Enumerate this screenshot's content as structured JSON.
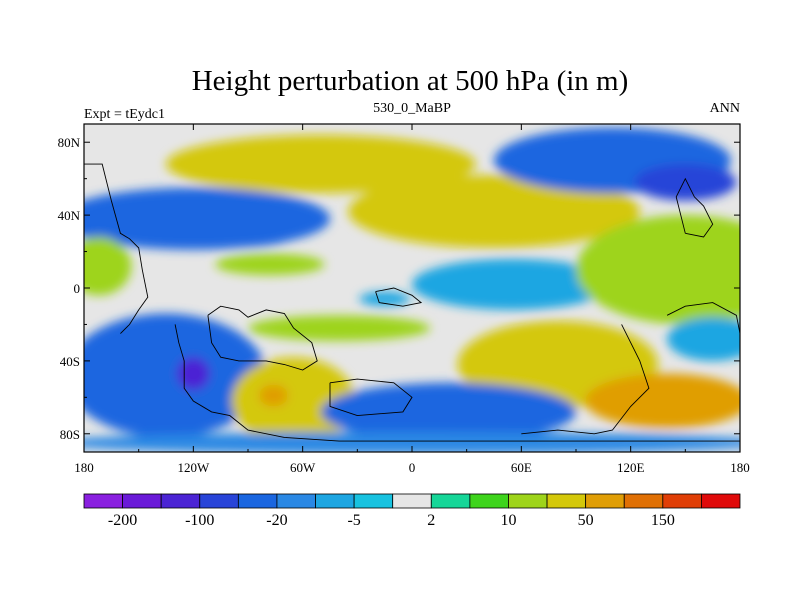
{
  "chart_data": {
    "type": "heatmap",
    "title": "Height perturbation at 500 hPa (in m)",
    "subtitle_left": "Expt = tEydc1",
    "subtitle_center": "530_0_MaBP",
    "subtitle_right": "ANN",
    "x_axis": {
      "range": [
        -180,
        180
      ],
      "ticks": [
        {
          "value": -180,
          "label": "180"
        },
        {
          "value": -120,
          "label": "120W"
        },
        {
          "value": -60,
          "label": "60W"
        },
        {
          "value": 0,
          "label": "0"
        },
        {
          "value": 60,
          "label": "60E"
        },
        {
          "value": 120,
          "label": "120E"
        },
        {
          "value": 180,
          "label": "180"
        }
      ]
    },
    "y_axis": {
      "range": [
        -90,
        90
      ],
      "ticks": [
        {
          "value": 80,
          "label": "80N"
        },
        {
          "value": 40,
          "label": "40N"
        },
        {
          "value": 0,
          "label": "0"
        },
        {
          "value": -40,
          "label": "40S"
        },
        {
          "value": -80,
          "label": "80S"
        }
      ]
    },
    "colorbar": {
      "levels": [
        -200,
        -150,
        -100,
        -50,
        -20,
        -10,
        -5,
        -2,
        2,
        5,
        10,
        20,
        50,
        100,
        150,
        200
      ],
      "level_labels": [
        "-200",
        "-100",
        "-20",
        "-5",
        "2",
        "10",
        "50",
        "150"
      ],
      "colors": [
        "#8a20e0",
        "#6a1ad8",
        "#4b24d4",
        "#2844d8",
        "#1a66e0",
        "#2a88e4",
        "#1ea6e2",
        "#18c2e0",
        "#e6e6e6",
        "#16d698",
        "#3ed41c",
        "#9ed41a",
        "#d4c80a",
        "#e09e06",
        "#e07004",
        "#e03e06",
        "#e00a0a"
      ]
    },
    "field_blobs": [
      {
        "lon": -50,
        "lat": 68,
        "rx": 85,
        "ry": 16,
        "value": 32
      },
      {
        "lon": -60,
        "lat": 66,
        "rx": 40,
        "ry": 11,
        "value": 45
      },
      {
        "lon": 45,
        "lat": 42,
        "rx": 80,
        "ry": 20,
        "value": 25
      },
      {
        "lon": 60,
        "lat": 40,
        "rx": 35,
        "ry": 12,
        "value": 45
      },
      {
        "lon": 110,
        "lat": 70,
        "rx": 65,
        "ry": 18,
        "value": -25
      },
      {
        "lon": 150,
        "lat": 58,
        "rx": 28,
        "ry": 10,
        "value": -70
      },
      {
        "lon": -120,
        "lat": 38,
        "rx": 75,
        "ry": 17,
        "value": -22
      },
      {
        "lon": -100,
        "lat": 30,
        "rx": 38,
        "ry": 8,
        "value": -40
      },
      {
        "lon": 55,
        "lat": 2,
        "rx": 55,
        "ry": 14,
        "value": -8
      },
      {
        "lon": 150,
        "lat": 10,
        "rx": 60,
        "ry": 30,
        "value": 15
      },
      {
        "lon": -172,
        "lat": 12,
        "rx": 18,
        "ry": 16,
        "value": 12
      },
      {
        "lon": -78,
        "lat": 13,
        "rx": 30,
        "ry": 6,
        "value": 10
      },
      {
        "lon": -15,
        "lat": -6,
        "rx": 14,
        "ry": 4,
        "value": -8
      },
      {
        "lon": -135,
        "lat": -48,
        "rx": 55,
        "ry": 34,
        "value": -25
      },
      {
        "lon": -130,
        "lat": -40,
        "rx": 32,
        "ry": 22,
        "value": -45
      },
      {
        "lon": -120,
        "lat": -47,
        "rx": 9,
        "ry": 9,
        "value": -110
      },
      {
        "lon": -65,
        "lat": -62,
        "rx": 34,
        "ry": 24,
        "value": 25
      },
      {
        "lon": -75,
        "lat": -60,
        "rx": 20,
        "ry": 14,
        "value": 45
      },
      {
        "lon": -76,
        "lat": -59,
        "rx": 8,
        "ry": 6,
        "value": 70
      },
      {
        "lon": 80,
        "lat": -42,
        "rx": 55,
        "ry": 24,
        "value": 28
      },
      {
        "lon": 100,
        "lat": -42,
        "rx": 30,
        "ry": 16,
        "value": 45
      },
      {
        "lon": 20,
        "lat": -68,
        "rx": 70,
        "ry": 16,
        "value": -22
      },
      {
        "lon": 35,
        "lat": -67,
        "rx": 38,
        "ry": 9,
        "value": -40
      },
      {
        "lon": 140,
        "lat": -62,
        "rx": 45,
        "ry": 15,
        "value": 55
      },
      {
        "lon": 165,
        "lat": -28,
        "rx": 25,
        "ry": 12,
        "value": -7
      },
      {
        "lon": -40,
        "lat": -22,
        "rx": 50,
        "ry": 7,
        "value": 15
      },
      {
        "lon": 0,
        "lat": -85,
        "rx": 200,
        "ry": 6,
        "value": -12
      }
    ],
    "coastlines": [
      [
        [
          -180,
          68
        ],
        [
          -170,
          68
        ],
        [
          -165,
          48
        ],
        [
          -160,
          30
        ],
        [
          -155,
          27
        ],
        [
          -150,
          22
        ],
        [
          -148,
          10
        ],
        [
          -145,
          -5
        ],
        [
          -150,
          -12
        ],
        [
          -155,
          -20
        ],
        [
          -160,
          -25
        ]
      ],
      [
        [
          -130,
          -20
        ],
        [
          -128,
          -30
        ],
        [
          -125,
          -40
        ],
        [
          -125,
          -55
        ],
        [
          -120,
          -62
        ],
        [
          -110,
          -68
        ],
        [
          -100,
          -70
        ],
        [
          -90,
          -78
        ],
        [
          -70,
          -82
        ],
        [
          -40,
          -84
        ],
        [
          -10,
          -84
        ],
        [
          20,
          -84
        ],
        [
          60,
          -84
        ],
        [
          110,
          -84
        ],
        [
          140,
          -84
        ],
        [
          175,
          -84
        ],
        [
          180,
          -84
        ]
      ],
      [
        [
          -112,
          -15
        ],
        [
          -105,
          -10
        ],
        [
          -95,
          -12
        ],
        [
          -90,
          -16
        ],
        [
          -80,
          -12
        ],
        [
          -70,
          -14
        ],
        [
          -65,
          -22
        ],
        [
          -55,
          -30
        ],
        [
          -52,
          -40
        ],
        [
          -60,
          -45
        ],
        [
          -70,
          -42
        ],
        [
          -80,
          -40
        ],
        [
          -95,
          -40
        ],
        [
          -105,
          -38
        ],
        [
          -110,
          -30
        ],
        [
          -112,
          -15
        ]
      ],
      [
        [
          -45,
          -52
        ],
        [
          -30,
          -50
        ],
        [
          -10,
          -52
        ],
        [
          0,
          -60
        ],
        [
          -5,
          -68
        ],
        [
          -30,
          -70
        ],
        [
          -45,
          -65
        ],
        [
          -45,
          -52
        ]
      ],
      [
        [
          -20,
          -2
        ],
        [
          -10,
          0
        ],
        [
          0,
          -4
        ],
        [
          5,
          -8
        ],
        [
          -5,
          -10
        ],
        [
          -18,
          -8
        ],
        [
          -20,
          -2
        ]
      ],
      [
        [
          115,
          -20
        ],
        [
          120,
          -30
        ],
        [
          125,
          -40
        ],
        [
          130,
          -55
        ],
        [
          120,
          -65
        ],
        [
          110,
          -78
        ],
        [
          100,
          -80
        ],
        [
          80,
          -78
        ],
        [
          60,
          -80
        ]
      ],
      [
        [
          140,
          -15
        ],
        [
          150,
          -10
        ],
        [
          165,
          -8
        ],
        [
          178,
          -15
        ],
        [
          180,
          -25
        ]
      ],
      [
        [
          150,
          30
        ],
        [
          160,
          28
        ],
        [
          165,
          35
        ],
        [
          160,
          45
        ],
        [
          155,
          50
        ],
        [
          150,
          60
        ],
        [
          145,
          50
        ],
        [
          150,
          30
        ]
      ]
    ]
  }
}
